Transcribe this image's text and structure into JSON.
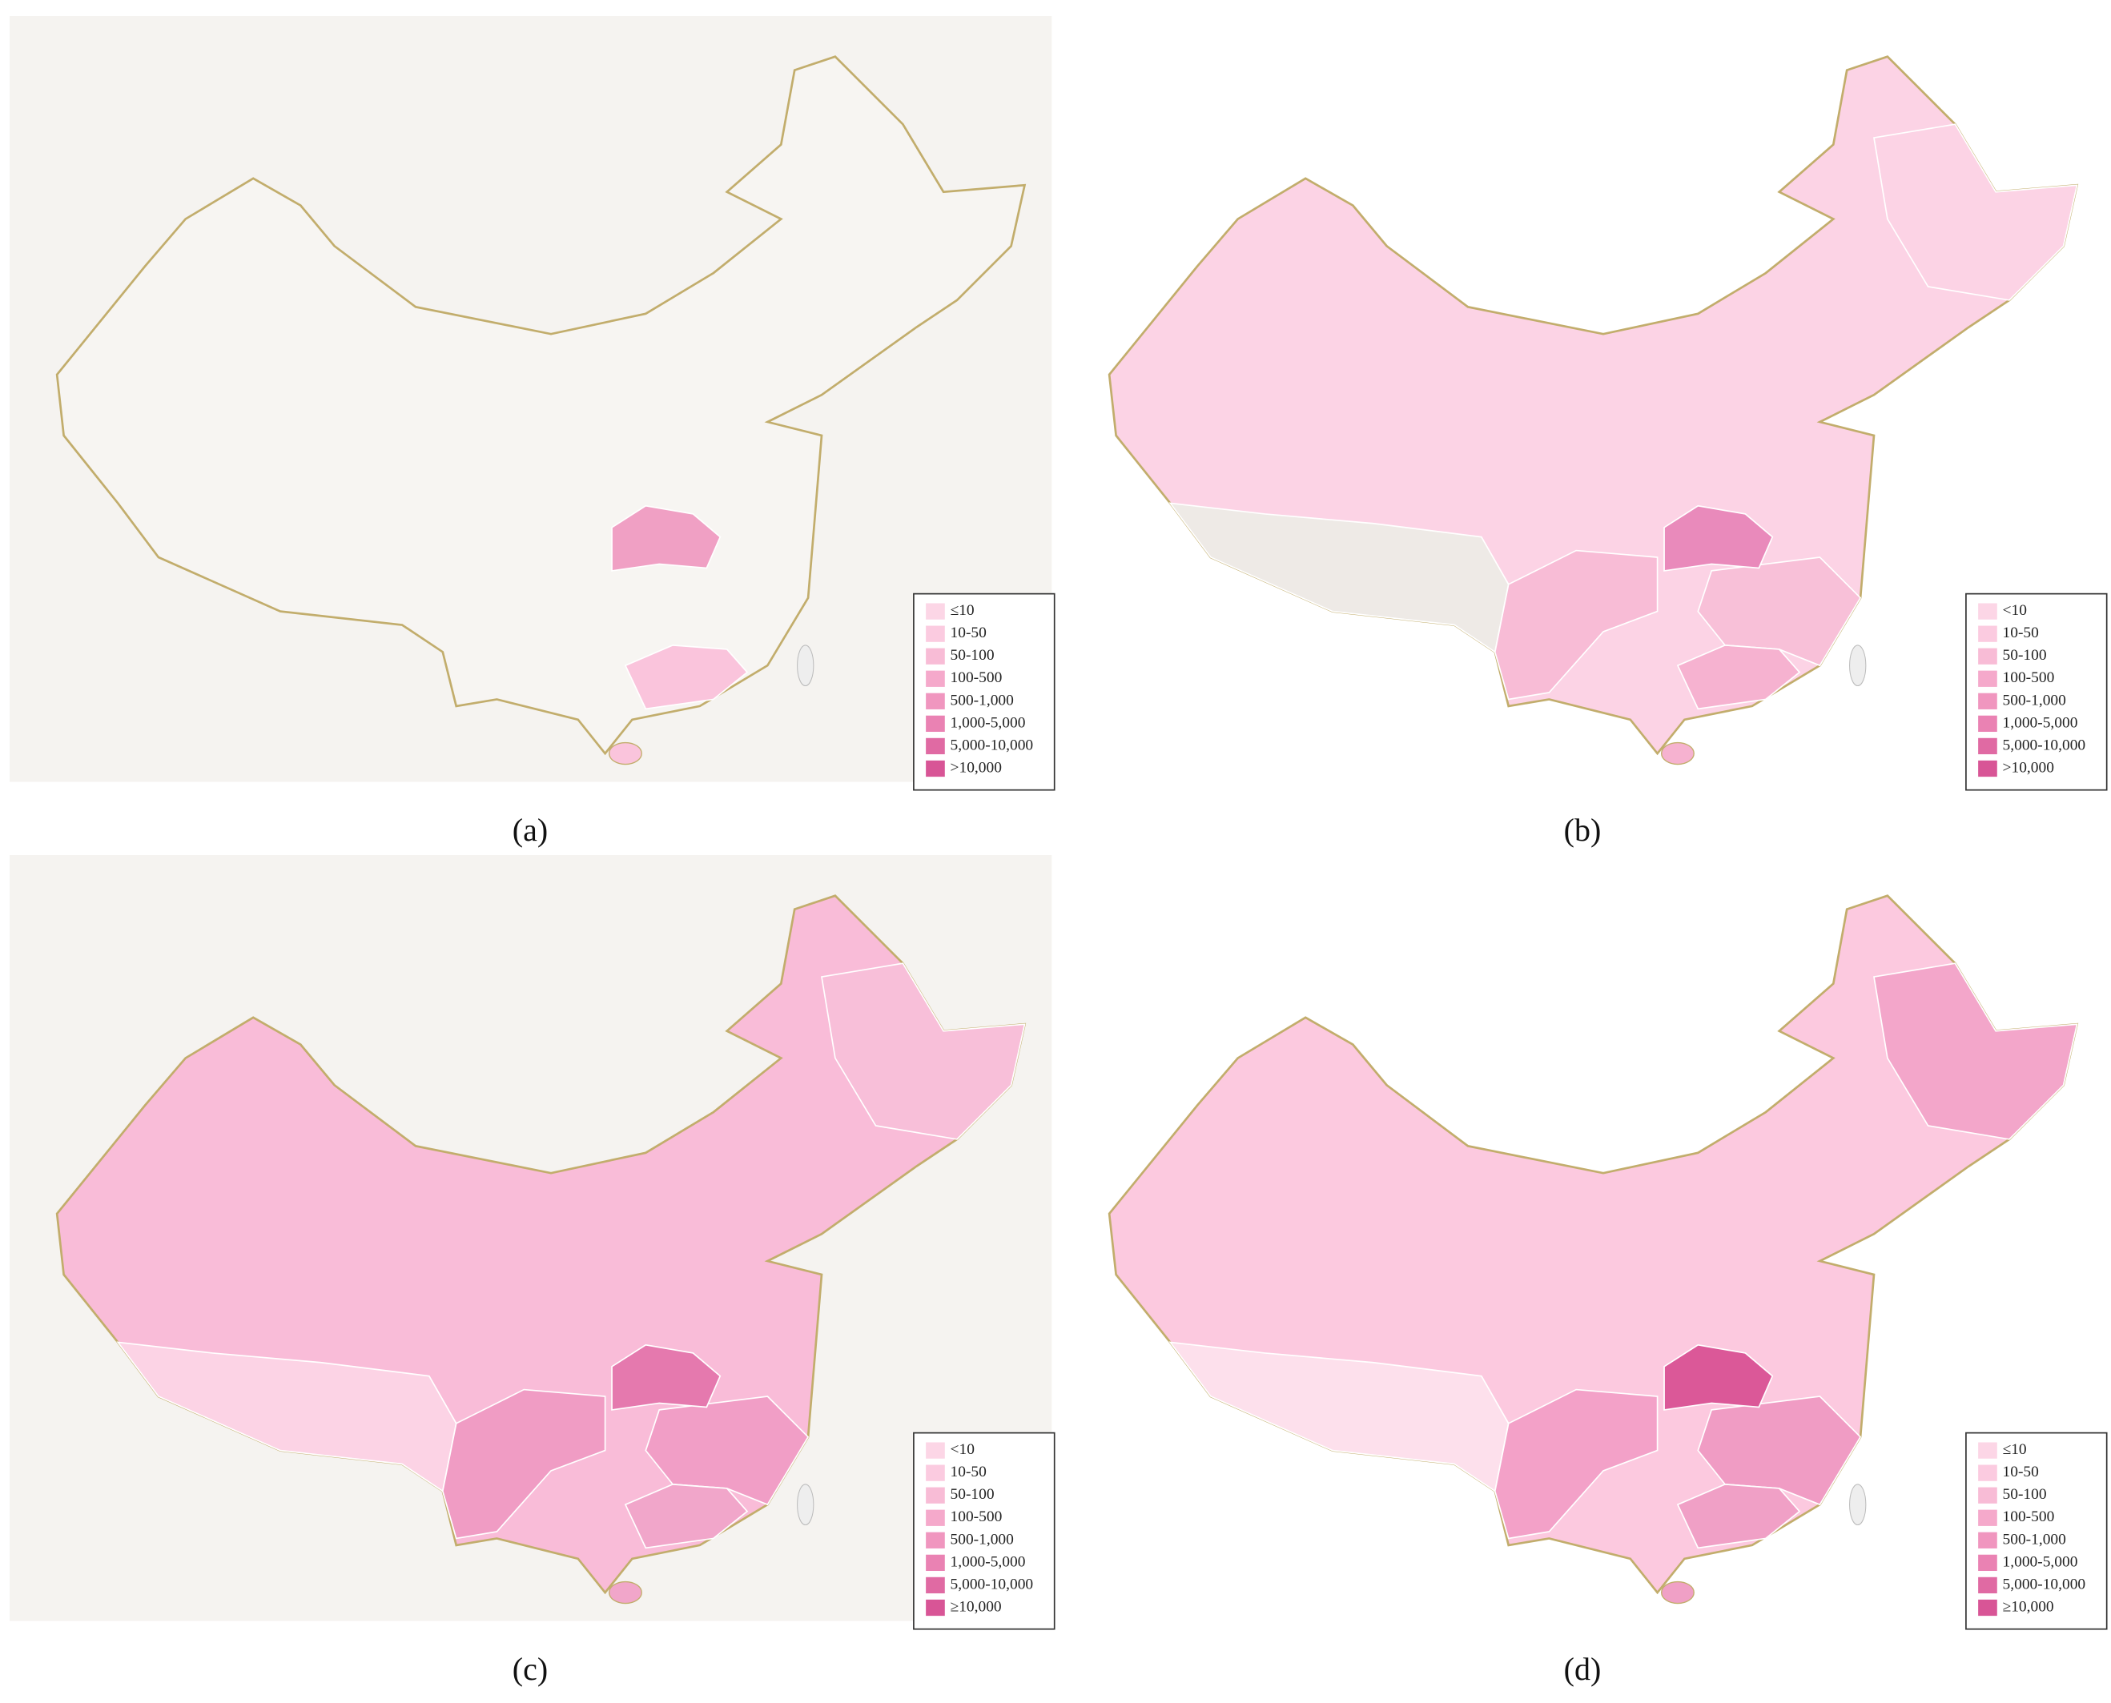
{
  "legend_colors": [
    "#fcd6e6",
    "#fbcbe0",
    "#f8bcd6",
    "#f5a9cb",
    "#f096bf",
    "#ea82b3",
    "#e06aa3",
    "#d85596"
  ],
  "panels": [
    {
      "label": "(a)",
      "legend": [
        "≤10",
        "10-50",
        "50-100",
        "100-500",
        "500-1,000",
        "1,000-5,000",
        "5,000-10,000",
        ">10,000"
      ]
    },
    {
      "label": "(b)",
      "legend": [
        "<10",
        "10-50",
        "50-100",
        "100-500",
        "500-1,000",
        "1,000-5,000",
        "5,000-10,000",
        ">10,000"
      ]
    },
    {
      "label": "(c)",
      "legend": [
        "<10",
        "10-50",
        "50-100",
        "100-500",
        "500-1,000",
        "1,000-5,000",
        "5,000-10,000",
        "≥10,000"
      ]
    },
    {
      "label": "(d)",
      "legend": [
        "≤10",
        "10-50",
        "50-100",
        "100-500",
        "500-1,000",
        "1,000-5,000",
        "5,000-10,000",
        "≥10,000"
      ]
    }
  ]
}
